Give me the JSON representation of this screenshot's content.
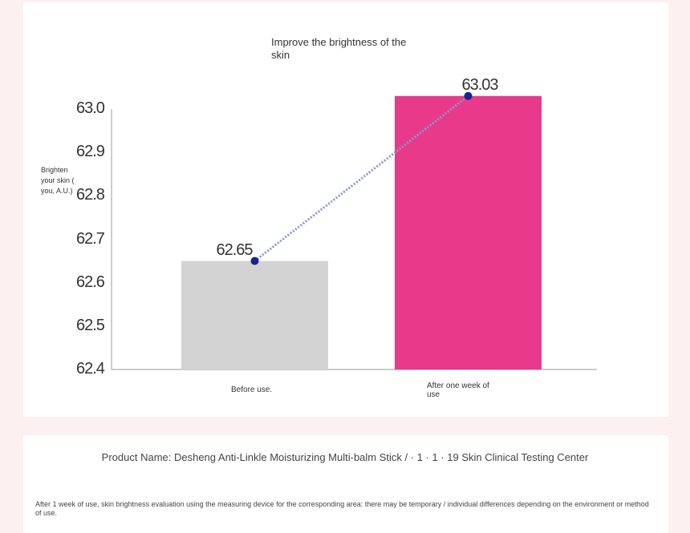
{
  "chart_data": {
    "type": "bar",
    "title": "Improve the brightness of the skin",
    "ylabel": "Brighten your skin ( you, A.U.)",
    "xlabel": "",
    "categories": [
      "Before use.",
      "After one week of use"
    ],
    "values": [
      62.65,
      63.03
    ],
    "data_labels": [
      "62.65",
      "63.03"
    ],
    "bar_colors": [
      "#d3d3d3",
      "#e8398a"
    ],
    "line_color": "#8a98c8",
    "point_color": "#12288a",
    "ylim": [
      62.4,
      63.0
    ],
    "y_ticks": [
      63.0,
      62.9,
      62.8,
      62.7,
      62.6,
      62.5,
      62.4
    ],
    "y_tick_labels": [
      "63.0",
      "62.9",
      "62.8",
      "62.7",
      "62.6",
      "62.5",
      "62.4"
    ],
    "grid": false,
    "connector": "dotted line joining the top centers of the bars"
  },
  "footer": {
    "product_line": "Product Name: Desheng Anti-Linkle Moisturizing Multi-balm Stick / · 1 · 1 · 19 Skin Clinical Testing Center",
    "footnote": "After 1 week of use, skin brightness evaluation using the measuring device for the corresponding area: there may be temporary / individual differences depending on the environment or method of use."
  }
}
